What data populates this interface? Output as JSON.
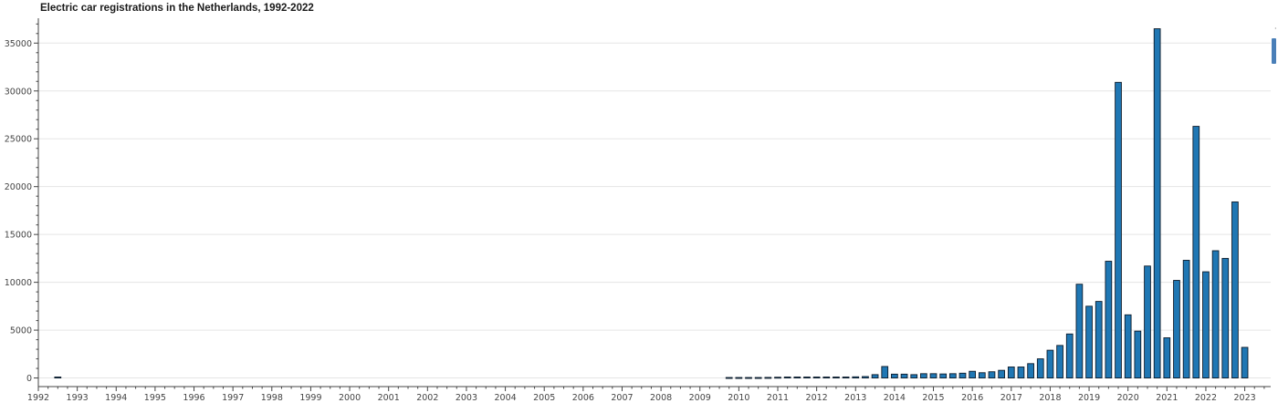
{
  "title": "Electric car registrations in the Netherlands, 1992-2022",
  "colors": {
    "bar_fill": "#1f77b4",
    "bar_stroke": "#0d1b2a",
    "grid": "#e5e5e5",
    "axis": "#444444"
  },
  "toolbar": {
    "icon": "pan-tool-icon",
    "mark": "·"
  },
  "chart_data": {
    "type": "bar",
    "title": "Electric car registrations in the Netherlands, 1992-2022",
    "xlabel": "",
    "ylabel": "",
    "x_axis": "datetime (monthly quarters)",
    "xlim": [
      "1992-01-01",
      "2023-09-01"
    ],
    "ylim": [
      -900,
      37600
    ],
    "yticks": [
      0,
      5000,
      10000,
      15000,
      20000,
      25000,
      30000,
      35000
    ],
    "xticks": [
      "1992",
      "1993",
      "1994",
      "1995",
      "1996",
      "1997",
      "1998",
      "1999",
      "2000",
      "2001",
      "2002",
      "2003",
      "2004",
      "2005",
      "2006",
      "2007",
      "2008",
      "2009",
      "2010",
      "2011",
      "2012",
      "2013",
      "2014",
      "2015",
      "2016",
      "2017",
      "2018",
      "2019",
      "2020",
      "2021",
      "2022",
      "2023"
    ],
    "grid": "horizontal",
    "legend": "none",
    "x": [
      "1992-07",
      "2009-10",
      "2010-01",
      "2010-04",
      "2010-07",
      "2010-10",
      "2011-01",
      "2011-04",
      "2011-07",
      "2011-10",
      "2012-01",
      "2012-04",
      "2012-07",
      "2012-10",
      "2013-01",
      "2013-04",
      "2013-07",
      "2013-10",
      "2014-01",
      "2014-04",
      "2014-07",
      "2014-10",
      "2015-01",
      "2015-04",
      "2015-07",
      "2015-10",
      "2016-01",
      "2016-04",
      "2016-07",
      "2016-10",
      "2017-01",
      "2017-04",
      "2017-07",
      "2017-10",
      "2018-01",
      "2018-04",
      "2018-07",
      "2018-10",
      "2019-01",
      "2019-04",
      "2019-07",
      "2019-10",
      "2020-01",
      "2020-04",
      "2020-07",
      "2020-10",
      "2021-01",
      "2021-04",
      "2021-07",
      "2021-10",
      "2022-01",
      "2022-04",
      "2022-07",
      "2022-10",
      "2023-01"
    ],
    "values": [
      100,
      50,
      50,
      50,
      50,
      60,
      80,
      100,
      100,
      100,
      100,
      100,
      100,
      100,
      120,
      150,
      350,
      1200,
      400,
      400,
      350,
      450,
      450,
      420,
      450,
      500,
      700,
      550,
      650,
      800,
      1150,
      1150,
      1500,
      2000,
      2900,
      3400,
      4600,
      9800,
      7500,
      8000,
      12200,
      30900,
      6600,
      4900,
      11700,
      36500,
      4200,
      10200,
      12300,
      26300,
      11100,
      13300,
      12500,
      18400,
      3200
    ]
  }
}
